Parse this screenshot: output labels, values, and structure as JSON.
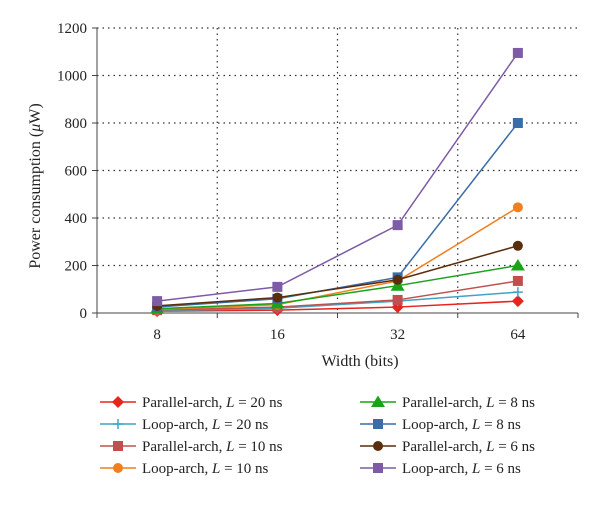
{
  "chart_data": {
    "type": "line",
    "title": "",
    "xlabel": "Width (bits)",
    "ylabel_prefix": "Power consumption (",
    "ylabel_mu": "μ",
    "ylabel_unit": "W)",
    "categories": [
      "8",
      "16",
      "32",
      "64"
    ],
    "ylim": [
      0,
      1200
    ],
    "yticks": [
      0,
      200,
      400,
      600,
      800,
      1000,
      1200
    ],
    "grid": "dotted",
    "legend_position": "bottom",
    "series": [
      {
        "name": "Parallel-arch, L = 20 ns",
        "name_prefix": "Parallel-arch, ",
        "name_var": "L",
        "name_suffix": " = 20 ns",
        "color": "#e8251c",
        "marker": "diamond",
        "values": [
          8,
          12,
          25,
          50
        ]
      },
      {
        "name": "Loop-arch, L = 20 ns",
        "name_prefix": "Loop-arch, ",
        "name_var": "L",
        "name_suffix": " = 20 ns",
        "color": "#3fa4c4",
        "marker": "plus",
        "values": [
          10,
          20,
          50,
          88
        ]
      },
      {
        "name": "Parallel-arch, L = 10 ns",
        "name_prefix": "Parallel-arch, ",
        "name_var": "L",
        "name_suffix": " = 10 ns",
        "color": "#c0504d",
        "marker": "square",
        "values": [
          12,
          25,
          55,
          135
        ]
      },
      {
        "name": "Loop-arch, L = 10 ns",
        "name_prefix": "Loop-arch, ",
        "name_var": "L",
        "name_suffix": " = 10 ns",
        "color": "#f07f1e",
        "marker": "circle",
        "values": [
          15,
          35,
          135,
          445
        ]
      },
      {
        "name": "Parallel-arch, L = 8 ns",
        "name_prefix": "Parallel-arch, ",
        "name_var": "L",
        "name_suffix": " = 8 ns",
        "color": "#19a319",
        "marker": "triangle",
        "values": [
          18,
          40,
          115,
          200
        ]
      },
      {
        "name": "Loop-arch, L = 8 ns",
        "name_prefix": "Loop-arch, ",
        "name_var": "L",
        "name_suffix": " = 8 ns",
        "color": "#3b6ca8",
        "marker": "square",
        "values": [
          25,
          60,
          150,
          800
        ]
      },
      {
        "name": "Parallel-arch, L = 6 ns",
        "name_prefix": "Parallel-arch, ",
        "name_var": "L",
        "name_suffix": " = 6 ns",
        "color": "#5a2d0c",
        "marker": "circle",
        "values": [
          30,
          65,
          140,
          283
        ]
      },
      {
        "name": "Loop-arch, L = 6 ns",
        "name_prefix": "Loop-arch, ",
        "name_var": "L",
        "name_suffix": " = 6 ns",
        "color": "#7d5ba6",
        "marker": "square",
        "values": [
          50,
          110,
          370,
          1095
        ]
      }
    ]
  }
}
